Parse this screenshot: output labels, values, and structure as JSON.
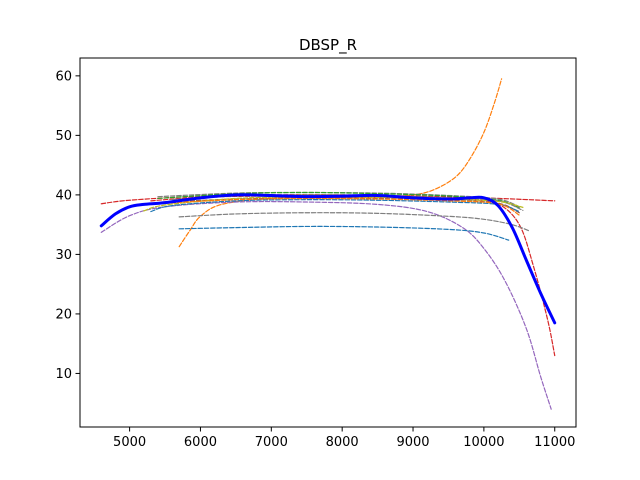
{
  "chart_data": {
    "type": "line",
    "title": "DBSP_R",
    "xlabel": "",
    "ylabel": "",
    "xlim": [
      4300,
      11300
    ],
    "ylim": [
      1,
      63
    ],
    "xticks": [
      5000,
      6000,
      7000,
      8000,
      9000,
      10000,
      11000
    ],
    "yticks": [
      10,
      20,
      30,
      40,
      50,
      60
    ],
    "grid": false,
    "series": [
      {
        "color": "#0000ff",
        "style": "solid",
        "width": 3,
        "points": [
          [
            4600,
            34.8
          ],
          [
            4800,
            36.8
          ],
          [
            5000,
            38.0
          ],
          [
            5200,
            38.4
          ],
          [
            5500,
            38.7
          ],
          [
            6000,
            39.5
          ],
          [
            6500,
            40.0
          ],
          [
            7000,
            39.9
          ],
          [
            7500,
            39.7
          ],
          [
            8000,
            39.8
          ],
          [
            8500,
            39.9
          ],
          [
            9000,
            39.5
          ],
          [
            9500,
            39.3
          ],
          [
            9800,
            39.5
          ],
          [
            10000,
            39.5
          ],
          [
            10200,
            38.2
          ],
          [
            10400,
            34.5
          ],
          [
            10600,
            29.0
          ],
          [
            10800,
            23.5
          ],
          [
            11000,
            18.5
          ]
        ]
      },
      {
        "color": "#ff7f0e",
        "style": "dashed",
        "width": 1.2,
        "points": [
          [
            5700,
            31.3
          ],
          [
            5850,
            34.0
          ],
          [
            6000,
            36.4
          ],
          [
            6300,
            38.4
          ],
          [
            7000,
            39.4
          ],
          [
            8000,
            39.5
          ],
          [
            8500,
            39.6
          ],
          [
            9000,
            40.0
          ],
          [
            9300,
            40.9
          ],
          [
            9600,
            43.0
          ],
          [
            9800,
            46.0
          ],
          [
            10000,
            50.5
          ],
          [
            10150,
            55.5
          ],
          [
            10250,
            59.5
          ]
        ]
      },
      {
        "color": "#d62728",
        "style": "dashed",
        "width": 1.2,
        "points": [
          [
            4600,
            38.5
          ],
          [
            5000,
            39.1
          ],
          [
            6000,
            39.8
          ],
          [
            7000,
            40.0
          ],
          [
            8000,
            40.0
          ],
          [
            9000,
            39.8
          ],
          [
            10000,
            39.5
          ],
          [
            11000,
            39.0
          ]
        ]
      },
      {
        "color": "#d62728",
        "style": "dashed",
        "width": 1.2,
        "points": [
          [
            5300,
            39.0
          ],
          [
            6000,
            39.6
          ],
          [
            7000,
            39.8
          ],
          [
            8000,
            39.7
          ],
          [
            9000,
            39.5
          ],
          [
            9800,
            39.2
          ],
          [
            10200,
            38.5
          ],
          [
            10500,
            35.0
          ],
          [
            10700,
            28.0
          ],
          [
            10900,
            19.0
          ],
          [
            11000,
            13.0
          ]
        ]
      },
      {
        "color": "#9467bd",
        "style": "dashed",
        "width": 1.2,
        "points": [
          [
            4600,
            33.7
          ],
          [
            5000,
            36.5
          ],
          [
            5500,
            38.0
          ],
          [
            6500,
            38.8
          ],
          [
            7500,
            38.8
          ],
          [
            8500,
            38.4
          ],
          [
            9200,
            37.2
          ],
          [
            9700,
            34.5
          ],
          [
            10000,
            31.0
          ],
          [
            10300,
            25.5
          ],
          [
            10600,
            17.5
          ],
          [
            10800,
            9.5
          ],
          [
            10950,
            4.0
          ]
        ]
      },
      {
        "color": "#1f77b4",
        "style": "dashed",
        "width": 1.2,
        "points": [
          [
            5700,
            34.3
          ],
          [
            6500,
            34.5
          ],
          [
            7500,
            34.7
          ],
          [
            8500,
            34.6
          ],
          [
            9500,
            34.2
          ],
          [
            10000,
            33.6
          ],
          [
            10350,
            32.4
          ]
        ]
      },
      {
        "color": "#7f7f7f",
        "style": "dashed",
        "width": 1.2,
        "points": [
          [
            5700,
            36.3
          ],
          [
            6500,
            36.8
          ],
          [
            7500,
            37.0
          ],
          [
            8500,
            36.9
          ],
          [
            9500,
            36.4
          ],
          [
            10000,
            35.9
          ],
          [
            10400,
            35.0
          ],
          [
            10650,
            33.9
          ]
        ]
      },
      {
        "color": "#8c564b",
        "style": "dashed",
        "width": 1.2,
        "points": [
          [
            5500,
            38.8
          ],
          [
            6500,
            39.3
          ],
          [
            7500,
            39.5
          ],
          [
            8500,
            39.4
          ],
          [
            9500,
            39.1
          ],
          [
            10200,
            38.6
          ],
          [
            10500,
            37.0
          ]
        ]
      },
      {
        "color": "#7f7f7f",
        "style": "dashed",
        "width": 1.2,
        "points": [
          [
            5400,
            39.7
          ],
          [
            6500,
            40.3
          ],
          [
            7500,
            40.4
          ],
          [
            8500,
            40.3
          ],
          [
            9500,
            39.9
          ],
          [
            10200,
            39.3
          ],
          [
            10500,
            38.0
          ]
        ]
      },
      {
        "color": "#2ca02c",
        "style": "dashed",
        "width": 1.2,
        "points": [
          [
            5400,
            39.4
          ],
          [
            6500,
            40.2
          ],
          [
            7500,
            40.4
          ],
          [
            8500,
            40.2
          ],
          [
            9500,
            39.8
          ],
          [
            10200,
            39.1
          ],
          [
            10500,
            37.8
          ]
        ]
      },
      {
        "color": "#7f7f7f",
        "style": "dashed",
        "width": 1.2,
        "points": [
          [
            5600,
            39.2
          ],
          [
            6500,
            39.8
          ],
          [
            7500,
            40.0
          ],
          [
            8500,
            39.9
          ],
          [
            9500,
            39.5
          ],
          [
            10200,
            39.0
          ],
          [
            10550,
            37.4
          ]
        ]
      },
      {
        "color": "#1f77b4",
        "style": "dashed",
        "width": 1.2,
        "points": [
          [
            5300,
            37.2
          ],
          [
            5600,
            38.2
          ],
          [
            6500,
            39.0
          ],
          [
            7500,
            39.2
          ],
          [
            8500,
            39.1
          ],
          [
            9500,
            38.8
          ],
          [
            10200,
            38.4
          ],
          [
            10500,
            37.2
          ]
        ]
      },
      {
        "color": "#bcbd22",
        "style": "dashed",
        "width": 1.2,
        "points": [
          [
            5200,
            37.3
          ],
          [
            5500,
            38.3
          ],
          [
            6500,
            39.4
          ],
          [
            7500,
            39.7
          ],
          [
            8500,
            39.6
          ],
          [
            9500,
            39.3
          ],
          [
            10200,
            38.9
          ],
          [
            10550,
            37.9
          ]
        ]
      },
      {
        "color": "#ff7f0e",
        "style": "dashed",
        "width": 1.2,
        "points": [
          [
            5500,
            38.6
          ],
          [
            6500,
            39.2
          ],
          [
            7500,
            39.4
          ],
          [
            8500,
            39.3
          ],
          [
            9500,
            39.0
          ],
          [
            10200,
            38.5
          ],
          [
            10500,
            36.6
          ]
        ]
      }
    ]
  }
}
